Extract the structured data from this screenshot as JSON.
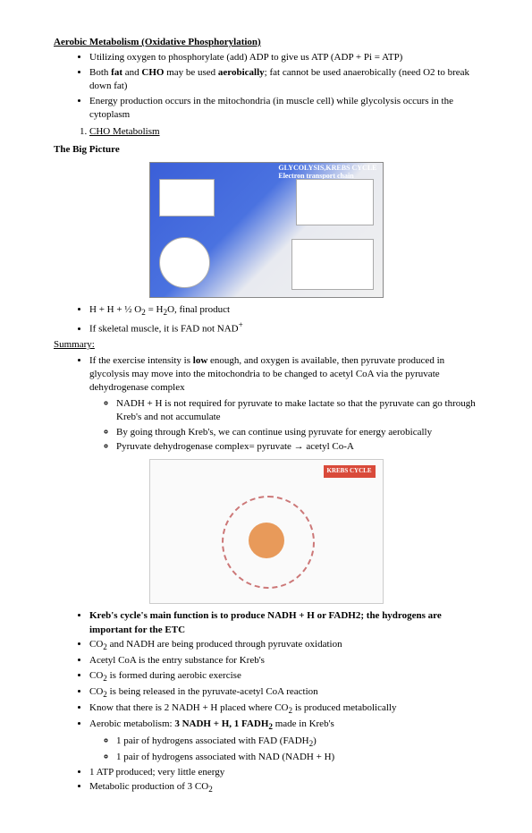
{
  "title": "Aerobic Metabolism (Oxidative Phosphorylation)",
  "intro_bullets": [
    "Utilizing oxygen to phosphorylate (add) ADP to give us ATP (ADP + Pi = ATP)",
    "Both <b>fat</b> and <b>CHO</b> may be used <b>aerobically</b>; fat cannot be used anaerobically (need O2 to break down fat)",
    "Energy production occurs in the mitochondria (in muscle cell) while glycolysis occurs in the cytoplasm"
  ],
  "numbered_item": "CHO Metabolism",
  "big_picture_label": "The Big Picture",
  "diagram1_title_line1": "GLYCOLYSIS,KREBS CYCLE",
  "diagram1_title_line2": "Electron transport chain",
  "after_diag1_bullets": [
    "H + H + ½ O<sub>2</sub> = H<sub>2</sub>O, final product",
    "If skeletal muscle, it is FAD not NAD<sup>+</sup>"
  ],
  "summary_label": "Summary:",
  "summary_main": "If the exercise intensity is <b>low</b> enough, and oxygen is available, then pyruvate produced in glycolysis may move into the mitochondria to be changed to acetyl CoA via the pyruvate dehydrogenase complex",
  "summary_sub": [
    "NADH + H is not required for pyruvate to make lactate so that the pyruvate can go through Kreb's and not accumulate",
    "By going through Kreb's, we can continue using pyruvate for energy aerobically",
    "Pyruvate dehydrogenase complex= pyruvate → acetyl Co-A"
  ],
  "krebs_cycle_label": "KREBS CYCLE",
  "final_bullets": [
    "<b>Kreb's cycle's main function is to produce NADH + H or FADH2; the hydrogens are important for the ETC</b>",
    "CO<sub>2</sub> and NADH are being produced through pyruvate oxidation",
    "Acetyl CoA is the entry substance for Kreb's",
    "CO<sub>2</sub> is formed during aerobic exercise",
    "CO<sub>2</sub> is being released in the pyruvate-acetyl CoA reaction",
    "Know that there is 2 NADH + H placed where CO<sub>2</sub> is produced metabolically",
    "Aerobic metabolism: <b>3 NADH + H, 1 FADH<sub>2</sub></b> made in Kreb's"
  ],
  "final_sub": [
    "1 pair of hydrogens associated with FAD (FADH<sub>2</sub>)",
    "1 pair of hydrogens associated with NAD (NADH + H)"
  ],
  "final_bullets2": [
    "1 ATP produced; very little energy",
    "Metabolic production of 3 CO<sub>2</sub>"
  ]
}
